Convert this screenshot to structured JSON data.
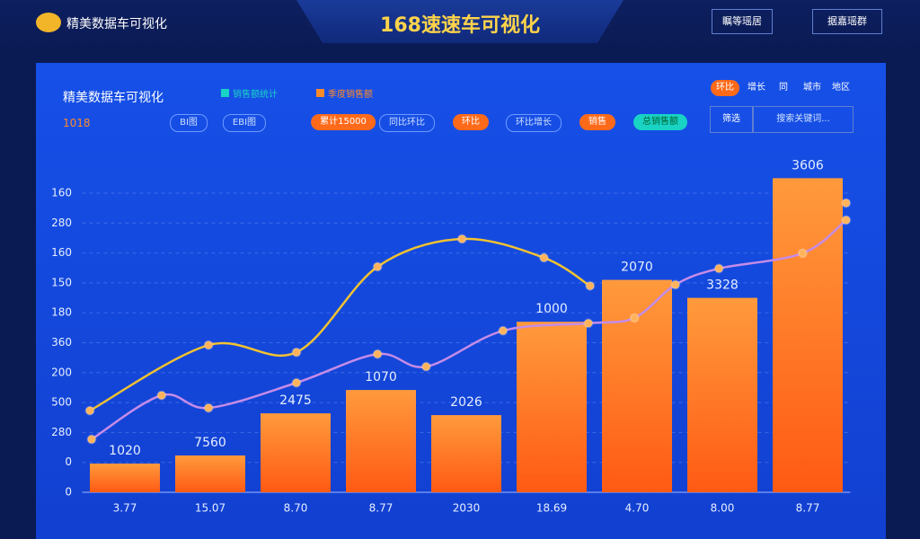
{
  "header": {
    "logo": "精美数据车可视化",
    "title": "168速速车可视化",
    "buttons": [
      "瞩等瑶居",
      "据嘉瑶群"
    ]
  },
  "panel": {
    "title": "精美数据车可视化",
    "value": "1018",
    "legend": [
      {
        "label": "销售额统计",
        "color": "#19d3c5"
      },
      {
        "label": "季度销售额",
        "color": "#ff8a2a"
      }
    ],
    "pills": [
      {
        "label": "BI图",
        "kind": "outline"
      },
      {
        "label": "EBI图",
        "kind": "outline"
      },
      {
        "label": "累计15000",
        "kind": "orange"
      },
      {
        "label": "同比环比",
        "kind": "outline"
      },
      {
        "label": "环比",
        "kind": "orange"
      },
      {
        "label": "环比增长",
        "kind": "outline"
      },
      {
        "label": "销售",
        "kind": "orange"
      },
      {
        "label": "总销售额",
        "kind": "teal"
      }
    ],
    "tags": [
      "环比",
      "增长",
      "同",
      "城市",
      "地区"
    ],
    "filter": "筛选",
    "search": "搜索关键词..."
  },
  "chart_data": {
    "type": "bar",
    "categories": [
      "3.77",
      "15.07",
      "8.70",
      "8.77",
      "2030",
      "18.69",
      "4.70",
      "8.00",
      "8.77"
    ],
    "series": [
      {
        "name": "季度销售额",
        "color": "#ff7a22",
        "values": [
          0.96,
          1.23,
          2.64,
          3.42,
          2.58,
          5.7,
          7.1,
          6.5,
          10.5
        ]
      }
    ],
    "bar_labels": [
      "1020",
      "7560",
      "2475",
      "1070",
      "2026",
      "1000",
      "2070",
      "3328",
      "3606"
    ],
    "lines": [
      {
        "color": "#f2c230",
        "x": [
          -0.41,
          0.98,
          2.01,
          2.96,
          3.95,
          4.91,
          5.45
        ],
        "values": [
          2.73,
          4.92,
          4.68,
          7.54,
          8.47,
          7.84,
          6.9
        ]
      },
      {
        "color": "#c58ce8",
        "x": [
          -0.39,
          0.43,
          0.98,
          2.01,
          2.96,
          3.53,
          4.43,
          5.43,
          5.97,
          6.45,
          6.96,
          7.94,
          8.45
        ],
        "values": [
          1.77,
          3.24,
          2.82,
          3.66,
          4.62,
          4.2,
          5.4,
          5.65,
          5.83,
          6.94,
          7.48,
          7.99,
          9.1
        ]
      },
      {
        "color": "#f2c230",
        "x": [
          8.45
        ],
        "values": [
          9.67
        ]
      }
    ],
    "xlim": [
      -0.5,
      8.5
    ],
    "ylim": [
      0,
      11
    ],
    "yticks": [
      0,
      {
        "value": 1,
        "label": "0"
      },
      {
        "value": 2,
        "label": "280"
      },
      {
        "value": 3,
        "label": "500"
      },
      {
        "value": 4,
        "label": "200"
      },
      {
        "value": 5,
        "label": "360"
      },
      {
        "value": 6,
        "label": "180"
      },
      {
        "value": 7,
        "label": "150"
      },
      {
        "value": 8,
        "label": "160"
      },
      {
        "value": 9,
        "label": "280"
      },
      {
        "value": 10,
        "label": "160"
      }
    ],
    "grid": true
  }
}
